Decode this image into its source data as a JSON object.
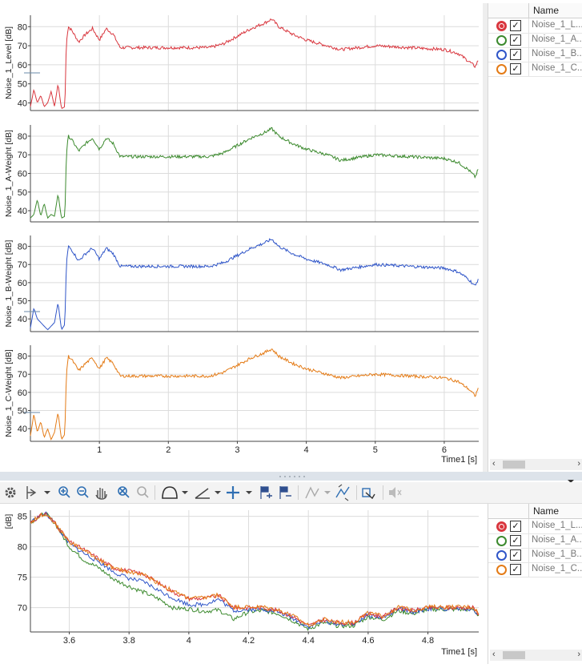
{
  "top_panel": {
    "x_label": "Time1 [s]",
    "x_ticks": [
      "1",
      "2",
      "3",
      "4",
      "5",
      "6"
    ]
  },
  "bottom_panel": {
    "x_label": "Time1 [s]",
    "y_label": "[dB]",
    "x_ticks": [
      "3.6",
      "3.8",
      "4",
      "4.2",
      "4.4",
      "4.6",
      "4.8"
    ],
    "y_ticks": [
      "85",
      "80",
      "75",
      "70"
    ]
  },
  "legend": {
    "header": "Name",
    "items": [
      {
        "name": "Noise_1_L...",
        "color": "#d9363e",
        "selected": true
      },
      {
        "name": "Noise_1_A...",
        "color": "#3c8a2e",
        "selected": false
      },
      {
        "name": "Noise_1_B...",
        "color": "#2f55c8",
        "selected": false
      },
      {
        "name": "Noise_1_C...",
        "color": "#e47b16",
        "selected": false
      }
    ]
  },
  "toolbar": {
    "icons": [
      "settings-icon",
      "cursor-icon",
      "zoom-in-icon",
      "zoom-out-icon",
      "pan-icon",
      "zoom-reset-icon",
      "zoom-undo-icon",
      "curve-shape-icon",
      "axis-icon",
      "crosshair-icon",
      "flag-add-icon",
      "flag-remove-icon",
      "smooth-icon",
      "peak-icon",
      "copy-icon",
      "mute-icon"
    ]
  },
  "chart_data": [
    {
      "type": "line",
      "panel": "top-1",
      "ylabel": "Noise_1_Level [dB]",
      "xlabel": "Time1 [s]",
      "xlim": [
        0,
        6.5
      ],
      "ylim": [
        36,
        86
      ],
      "yticks": [
        40,
        50,
        60,
        70,
        80
      ],
      "color": "#d9363e",
      "x": [
        0,
        0.05,
        0.1,
        0.15,
        0.2,
        0.25,
        0.3,
        0.35,
        0.4,
        0.45,
        0.5,
        0.52,
        0.55,
        0.6,
        0.7,
        0.8,
        0.9,
        1.0,
        1.1,
        1.2,
        1.3,
        1.5,
        1.8,
        2.0,
        2.3,
        2.6,
        2.8,
        3.0,
        3.2,
        3.4,
        3.5,
        3.6,
        3.8,
        4.0,
        4.3,
        4.5,
        5.0,
        5.5,
        6.0,
        6.2,
        6.35,
        6.45,
        6.5
      ],
      "y": [
        38,
        47,
        40,
        44,
        38,
        40,
        46,
        38,
        50,
        37,
        38,
        72,
        80,
        78,
        72,
        76,
        79,
        73,
        79,
        76,
        69,
        69,
        69,
        69,
        69,
        69,
        71,
        75,
        79,
        82,
        84,
        80,
        76,
        73,
        70,
        68,
        70,
        69,
        68,
        66,
        62,
        59,
        63
      ]
    },
    {
      "type": "line",
      "panel": "top-2",
      "ylabel": "Noise_1_A-Weight [dB]",
      "xlabel": "Time1 [s]",
      "xlim": [
        0,
        6.5
      ],
      "ylim": [
        34,
        86
      ],
      "yticks": [
        40,
        50,
        60,
        70,
        80
      ],
      "color": "#3c8a2e",
      "x": [
        0,
        0.05,
        0.1,
        0.15,
        0.2,
        0.25,
        0.3,
        0.35,
        0.4,
        0.45,
        0.5,
        0.52,
        0.55,
        0.6,
        0.7,
        0.8,
        0.9,
        1.0,
        1.1,
        1.2,
        1.3,
        1.5,
        1.8,
        2.0,
        2.3,
        2.6,
        2.8,
        3.0,
        3.2,
        3.4,
        3.5,
        3.6,
        3.8,
        4.0,
        4.3,
        4.5,
        5.0,
        5.5,
        6.0,
        6.2,
        6.35,
        6.45,
        6.5
      ],
      "y": [
        36,
        38,
        46,
        37,
        44,
        36,
        38,
        37,
        49,
        36,
        37,
        70,
        80,
        78,
        72,
        76,
        79,
        73,
        79,
        76,
        69,
        69,
        69,
        69,
        69,
        69,
        71,
        75,
        79,
        82,
        84,
        80,
        76,
        73,
        70,
        67,
        70,
        69,
        68,
        66,
        62,
        58,
        63
      ]
    },
    {
      "type": "line",
      "panel": "top-3",
      "ylabel": "Noise_1_B-Weight [dB]",
      "xlabel": "Time1 [s]",
      "xlim": [
        0,
        6.5
      ],
      "ylim": [
        33,
        86
      ],
      "yticks": [
        40,
        50,
        60,
        70,
        80
      ],
      "color": "#2f55c8",
      "x": [
        0,
        0.05,
        0.1,
        0.15,
        0.2,
        0.25,
        0.3,
        0.35,
        0.4,
        0.45,
        0.5,
        0.52,
        0.55,
        0.6,
        0.7,
        0.8,
        0.9,
        1.0,
        1.1,
        1.2,
        1.3,
        1.5,
        1.8,
        2.0,
        2.3,
        2.6,
        2.8,
        3.0,
        3.2,
        3.4,
        3.5,
        3.6,
        3.8,
        4.0,
        4.3,
        4.5,
        5.0,
        5.5,
        6.0,
        6.2,
        6.35,
        6.45,
        6.5
      ],
      "y": [
        35,
        46,
        40,
        38,
        36,
        34,
        36,
        38,
        49,
        34,
        37,
        70,
        80,
        78,
        72,
        76,
        79,
        73,
        79,
        76,
        69,
        69,
        69,
        69,
        69,
        69,
        71,
        75,
        79,
        82,
        84,
        80,
        76,
        73,
        70,
        67,
        70,
        69,
        68,
        66,
        62,
        58,
        63
      ]
    },
    {
      "type": "line",
      "panel": "top-4",
      "ylabel": "Noise_1_C-Weight [dB]",
      "xlabel": "Time1 [s]",
      "xlim": [
        0,
        6.5
      ],
      "ylim": [
        33,
        86
      ],
      "yticks": [
        40,
        50,
        60,
        70,
        80
      ],
      "xticks": [
        1,
        2,
        3,
        4,
        5,
        6
      ],
      "color": "#e47b16",
      "x": [
        0,
        0.05,
        0.1,
        0.15,
        0.2,
        0.25,
        0.3,
        0.35,
        0.4,
        0.45,
        0.5,
        0.52,
        0.55,
        0.6,
        0.7,
        0.8,
        0.9,
        1.0,
        1.1,
        1.2,
        1.3,
        1.5,
        1.8,
        2.0,
        2.3,
        2.6,
        2.8,
        3.0,
        3.2,
        3.4,
        3.5,
        3.6,
        3.8,
        4.0,
        4.3,
        4.5,
        5.0,
        5.5,
        6.0,
        6.2,
        6.35,
        6.45,
        6.5
      ],
      "y": [
        36,
        48,
        38,
        44,
        35,
        40,
        34,
        38,
        49,
        34,
        37,
        70,
        80,
        78,
        72,
        76,
        79,
        73,
        79,
        76,
        69,
        69,
        69,
        69,
        69,
        69,
        71,
        75,
        79,
        82,
        84,
        80,
        76,
        73,
        70,
        68,
        70,
        69,
        68,
        66,
        62,
        58,
        63
      ]
    },
    {
      "type": "line",
      "panel": "bottom",
      "ylabel": "[dB]",
      "xlabel": "Time1 [s]",
      "xlim": [
        3.47,
        4.97
      ],
      "ylim": [
        66,
        86
      ],
      "xticks": [
        3.6,
        3.8,
        4,
        4.2,
        4.4,
        4.6,
        4.8
      ],
      "yticks": [
        70,
        75,
        80,
        85
      ],
      "x": [
        3.47,
        3.5,
        3.52,
        3.55,
        3.6,
        3.65,
        3.7,
        3.75,
        3.8,
        3.85,
        3.9,
        3.95,
        4.0,
        4.05,
        4.1,
        4.15,
        4.2,
        4.25,
        4.3,
        4.35,
        4.4,
        4.45,
        4.5,
        4.55,
        4.6,
        4.65,
        4.7,
        4.75,
        4.8,
        4.85,
        4.9,
        4.95,
        4.97
      ],
      "series": [
        {
          "name": "Noise_1_L...",
          "color": "#d9363e",
          "values": [
            84,
            85,
            85.5,
            84,
            80.8,
            79.5,
            78,
            76.5,
            76,
            75.5,
            74,
            72.5,
            71.5,
            71.5,
            72,
            70,
            70,
            70,
            69.5,
            68.5,
            67,
            68,
            67.5,
            67.5,
            69,
            68.5,
            70,
            69.5,
            70,
            70,
            70,
            70,
            69
          ]
        },
        {
          "name": "Noise_1_A...",
          "color": "#3c8a2e",
          "values": [
            84,
            85,
            85.5,
            84,
            80,
            77.8,
            76.5,
            74.6,
            73.5,
            72.5,
            71.4,
            69.9,
            69.8,
            69.4,
            69.6,
            68.1,
            69.3,
            69.5,
            69,
            67.8,
            66.5,
            67.5,
            67,
            67,
            68.5,
            68,
            69.5,
            69,
            69.7,
            69.7,
            69.7,
            69.7,
            68.7
          ]
        },
        {
          "name": "Noise_1_B...",
          "color": "#2f55c8",
          "values": [
            84,
            85,
            85.5,
            84,
            80.5,
            78.9,
            77.5,
            75.8,
            74.8,
            74.2,
            72.8,
            71.5,
            70.5,
            70.5,
            71.4,
            69.5,
            69.7,
            69.7,
            69.3,
            68.2,
            66.8,
            67.8,
            67.3,
            67.3,
            68.8,
            68.3,
            69.8,
            69.3,
            69.8,
            69.8,
            69.8,
            69.8,
            68.8
          ]
        },
        {
          "name": "Noise_1_C...",
          "color": "#e47b16",
          "values": [
            84,
            85,
            85.5,
            84,
            80.8,
            79.4,
            77.9,
            76.4,
            75.9,
            75.4,
            74,
            72.6,
            71.6,
            71.6,
            72.1,
            70.1,
            70.1,
            70.1,
            69.6,
            68.6,
            67.1,
            68.1,
            67.6,
            67.6,
            69.1,
            68.6,
            70.1,
            69.6,
            70.1,
            70.1,
            70.1,
            70.1,
            69.1
          ]
        }
      ]
    }
  ]
}
